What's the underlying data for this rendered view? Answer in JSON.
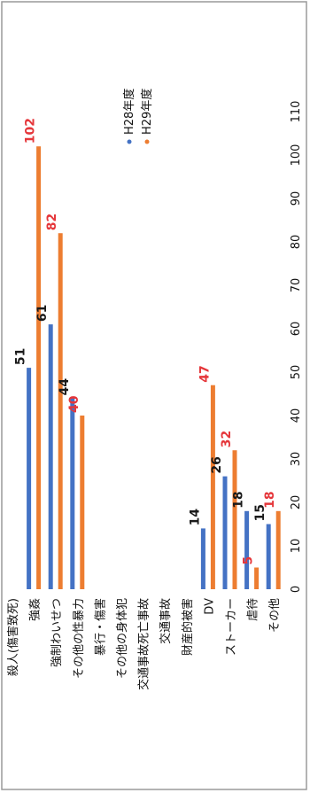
{
  "chart_data": {
    "type": "bar",
    "orientation": "horizontal",
    "rotated_page": true,
    "categories": [
      "殺人(傷害致死)",
      "強姦",
      "強制わいせつ",
      "その他の性暴力",
      "暴行・傷害",
      "その他の身体犯",
      "交通事故死亡事故",
      "交通事故",
      "財産的被害",
      "DV",
      "ストーカー",
      "虐待",
      "その他"
    ],
    "series": [
      {
        "name": "H28年度",
        "color": "#4472c4",
        "values": [
          null,
          51,
          61,
          44,
          null,
          null,
          null,
          null,
          null,
          14,
          26,
          18,
          15
        ],
        "labels": [
          "",
          "51",
          "61",
          "44",
          "",
          "",
          "",
          "",
          "",
          "14",
          "26",
          "18",
          "15"
        ]
      },
      {
        "name": "H29年度",
        "color": "#ed7d31",
        "label_color": "#e5363a",
        "values": [
          null,
          102,
          82,
          40,
          null,
          null,
          null,
          null,
          null,
          47,
          32,
          5,
          18
        ],
        "labels": [
          "",
          "102",
          "82",
          "40",
          "",
          "",
          "",
          "",
          "",
          "47",
          "32",
          "5",
          "18"
        ]
      }
    ],
    "xlim": [
      0,
      110
    ],
    "ticks": [
      "0",
      "10",
      "20",
      "30",
      "40",
      "50",
      "60",
      "70",
      "80",
      "90",
      "100",
      "110"
    ],
    "grid": false,
    "legend_position": "top-right"
  }
}
